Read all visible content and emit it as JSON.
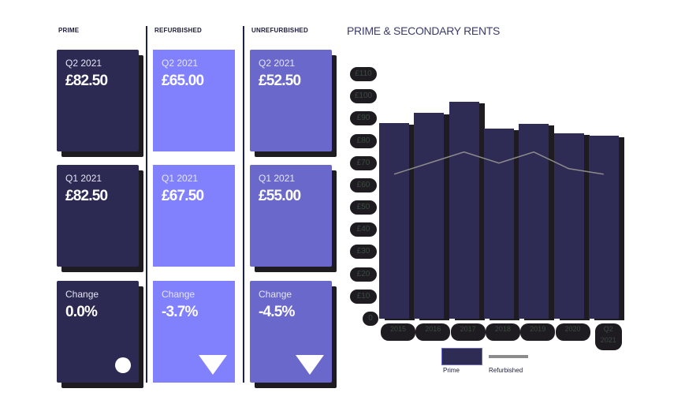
{
  "columns": [
    {
      "label": "PRIME",
      "color": "#2c2a52"
    },
    {
      "label": "REFURBISHED",
      "color": "#8181fd"
    },
    {
      "label": "UNREFURBISHED",
      "color": "#6a69cb"
    }
  ],
  "cards": {
    "prime": {
      "q2": {
        "label": "Q2 2021",
        "value": "£82.50"
      },
      "q1": {
        "label": "Q1 2021",
        "value": "£82.50"
      },
      "change": {
        "label": "Change",
        "value": "0.0%",
        "indicator": "circle-icon"
      }
    },
    "refurbished": {
      "q2": {
        "label": "Q2 2021",
        "value": "£65.00"
      },
      "q1": {
        "label": "Q1 2021",
        "value": "£67.50"
      },
      "change": {
        "label": "Change",
        "value": "-3.7%",
        "indicator": "down-triangle-icon"
      }
    },
    "unrefurbished": {
      "q2": {
        "label": "Q2 2021",
        "value": "£52.50"
      },
      "q1": {
        "label": "Q1 2021",
        "value": "£55.00"
      },
      "change": {
        "label": "Change",
        "value": "-4.5%",
        "indicator": "down-triangle-icon"
      }
    }
  },
  "chart": {
    "title": "PRIME & SECONDARY RENTS",
    "yticks": [
      "£110",
      "£100",
      "£90",
      "£80",
      "£70",
      "£60",
      "£50",
      "£40",
      "£30",
      "£20",
      "£10",
      "0"
    ],
    "xticks": [
      "2015",
      "2016",
      "2017",
      "2018",
      "2019",
      "2020",
      "Q2 2021"
    ],
    "legend": {
      "prime": "Prime",
      "refurbished": "Refurbished"
    }
  },
  "chart_data": {
    "type": "bar",
    "title": "PRIME & SECONDARY RENTS",
    "categories": [
      "2015",
      "2016",
      "2017",
      "2018",
      "2019",
      "2020",
      "Q2 2021"
    ],
    "series": [
      {
        "name": "Prime",
        "type": "bar",
        "color": "#2e2b55",
        "values": [
          88,
          92.5,
          97.5,
          85.5,
          87.5,
          83.5,
          82.5
        ]
      },
      {
        "name": "Refurbished",
        "type": "line",
        "color": "#8c8c8c",
        "values": [
          65,
          70,
          75,
          70,
          75,
          67.5,
          65
        ]
      }
    ],
    "xlabel": "",
    "ylabel": "",
    "ylim": [
      0,
      110
    ],
    "yticks": [
      0,
      10,
      20,
      30,
      40,
      50,
      60,
      70,
      80,
      90,
      100,
      110
    ],
    "tick_prefix": "£",
    "grid": false,
    "legend_position": "bottom"
  }
}
